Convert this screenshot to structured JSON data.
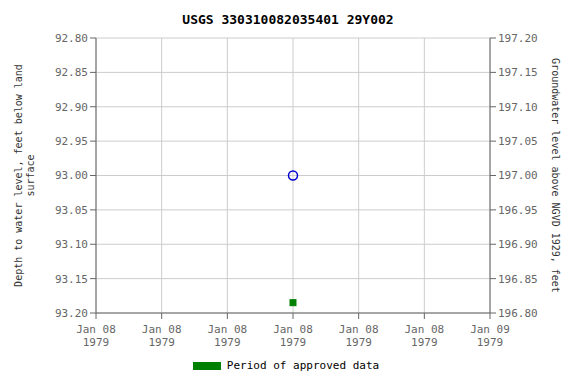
{
  "chart_data": {
    "type": "scatter",
    "title": "USGS 330310082035401 29Y002",
    "categories": [
      "Jan 08\n1979",
      "Jan 08\n1979",
      "Jan 08\n1979",
      "Jan 08\n1979",
      "Jan 08\n1979",
      "Jan 08\n1979",
      "Jan 09\n1979"
    ],
    "series": [
      {
        "color": "#0000cc",
        "marker": "circle",
        "values": [
          null,
          null,
          null,
          93.0,
          null,
          null,
          null
        ]
      },
      {
        "name": "Period of approved data",
        "color": "#008000",
        "marker": "square",
        "values": [
          null,
          null,
          null,
          93.185,
          null,
          null,
          null
        ]
      }
    ],
    "y_label": "Depth to water level, feet below land\nsurface",
    "y2_label": "Groundwater level above NGVD 1929, feet",
    "ylim": [
      93.2,
      92.8
    ],
    "yticks": [
      {
        "value": 92.8,
        "label": "92.80"
      },
      {
        "value": 92.85,
        "label": "92.85"
      },
      {
        "value": 92.9,
        "label": "92.90"
      },
      {
        "value": 92.95,
        "label": "92.95"
      },
      {
        "value": 93.0,
        "label": "93.00"
      },
      {
        "value": 93.05,
        "label": "93.05"
      },
      {
        "value": 93.1,
        "label": "93.10"
      },
      {
        "value": 93.15,
        "label": "93.15"
      },
      {
        "value": 93.2,
        "label": "93.20"
      }
    ],
    "y2lim": [
      196.8,
      197.2
    ],
    "y2ticks": [
      {
        "value": 197.2,
        "label": "197.20"
      },
      {
        "value": 197.15,
        "label": "197.15"
      },
      {
        "value": 197.1,
        "label": "197.10"
      },
      {
        "value": 197.05,
        "label": "197.05"
      },
      {
        "value": 197.0,
        "label": "197.00"
      },
      {
        "value": 196.95,
        "label": "196.95"
      },
      {
        "value": 196.9,
        "label": "196.90"
      },
      {
        "value": 196.85,
        "label": "196.85"
      },
      {
        "value": 196.8,
        "label": "196.80"
      }
    ],
    "grid": true,
    "legend": "bottom"
  }
}
